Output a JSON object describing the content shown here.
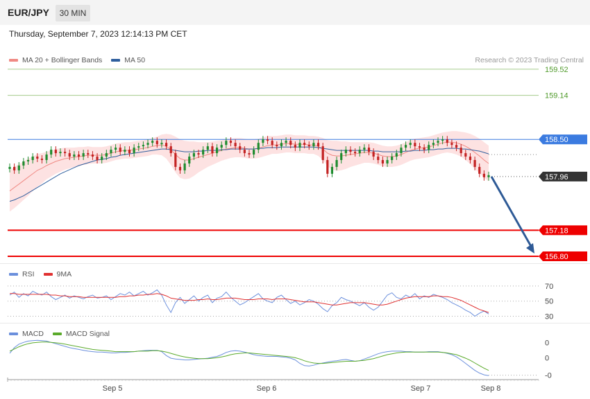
{
  "header": {
    "symbol": "EUR/JPY",
    "timeframe": "30 MIN"
  },
  "datetime": "Thursday, September 7, 2023 12:14:13 PM CET",
  "credit": "Research © 2023 Trading Central",
  "colors": {
    "ma20": "#f08a84",
    "ma50": "#2f5f9e",
    "bollinger": "#fde2e2",
    "resistance_green": "#a5cc8c",
    "pivot_blue": "#3b7be0",
    "support_red": "#ee0000",
    "current_price": "#333333",
    "arrow": "#2e5a96",
    "candle_up": "#1f8c2f",
    "candle_down": "#c32222",
    "rsi": "#6b8fdc",
    "rsi_ma": "#e03030",
    "macd": "#6b8fdc",
    "macd_signal": "#5aaa2a"
  },
  "chart_data": [
    {
      "type": "candlestick",
      "name": "price",
      "legend": [
        {
          "label": "MA 20 + Bollinger Bands"
        },
        {
          "label": "MA 50"
        }
      ],
      "ylim": [
        156.72,
        159.62
      ],
      "x_ticks": [
        "Sep 5",
        "Sep 6",
        "Sep 7",
        "Sep 8"
      ],
      "levels": [
        {
          "value": 159.52,
          "label": "159.52",
          "kind": "resistance"
        },
        {
          "value": 159.14,
          "label": "159.14",
          "kind": "resistance"
        },
        {
          "value": 158.5,
          "label": "158.50",
          "kind": "pivot"
        },
        {
          "value": 157.96,
          "label": "157.96",
          "kind": "current"
        },
        {
          "value": 157.18,
          "label": "157.18",
          "kind": "support"
        },
        {
          "value": 156.8,
          "label": "156.80",
          "kind": "support"
        }
      ],
      "close_series": [
        158.1,
        158.05,
        158.12,
        158.18,
        158.2,
        158.25,
        158.22,
        158.2,
        158.28,
        158.35,
        158.3,
        158.32,
        158.3,
        158.25,
        158.28,
        158.25,
        158.3,
        158.28,
        158.25,
        158.2,
        158.25,
        158.3,
        158.35,
        158.38,
        158.32,
        158.35,
        158.3,
        158.38,
        158.4,
        158.42,
        158.45,
        158.48,
        158.43,
        158.45,
        158.4,
        158.3,
        158.1,
        158.05,
        158.15,
        158.25,
        158.3,
        158.28,
        158.35,
        158.4,
        158.3,
        158.38,
        158.42,
        158.48,
        158.45,
        158.4,
        158.35,
        158.3,
        158.28,
        158.35,
        158.45,
        158.5,
        158.48,
        158.42,
        158.4,
        158.45,
        158.48,
        158.42,
        158.38,
        158.45,
        158.42,
        158.4,
        158.45,
        158.4,
        158.2,
        158.0,
        158.1,
        158.2,
        158.3,
        158.35,
        158.32,
        158.3,
        158.35,
        158.38,
        158.32,
        158.25,
        158.2,
        158.15,
        158.2,
        158.25,
        158.3,
        158.38,
        158.42,
        158.45,
        158.4,
        158.38,
        158.35,
        158.42,
        158.45,
        158.48,
        158.5,
        158.45,
        158.42,
        158.38,
        158.3,
        158.25,
        158.2,
        158.1,
        158.0,
        157.95,
        157.98
      ],
      "ma20_series": [
        157.75,
        157.8,
        157.85,
        157.9,
        157.95,
        158.0,
        158.05,
        158.08,
        158.12,
        158.15,
        158.18,
        158.2,
        158.22,
        158.23,
        158.24,
        158.25,
        158.26,
        158.27,
        158.27,
        158.27,
        158.27,
        158.28,
        158.3,
        158.32,
        158.33,
        158.34,
        158.34,
        158.35,
        158.36,
        158.37,
        158.38,
        158.4,
        158.41,
        158.42,
        158.4,
        158.35,
        158.28,
        158.22,
        158.2,
        158.2,
        158.22,
        158.24,
        158.26,
        158.28,
        158.3,
        158.32,
        158.34,
        158.36,
        158.37,
        158.38,
        158.38,
        158.37,
        158.36,
        158.36,
        158.37,
        158.39,
        158.41,
        158.42,
        158.42,
        158.43,
        158.44,
        158.44,
        158.43,
        158.43,
        158.43,
        158.42,
        158.42,
        158.4,
        158.36,
        158.3,
        158.27,
        158.26,
        158.26,
        158.27,
        158.28,
        158.29,
        158.3,
        158.31,
        158.31,
        158.3,
        158.28,
        158.26,
        158.25,
        158.25,
        158.26,
        158.28,
        158.31,
        158.34,
        158.36,
        158.37,
        158.38,
        158.39,
        158.41,
        158.43,
        158.45,
        158.46,
        158.46,
        158.45,
        158.43,
        158.4,
        158.36,
        158.31,
        158.26,
        158.2,
        158.15
      ],
      "ma50_series": [
        157.6,
        157.62,
        157.65,
        157.68,
        157.72,
        157.76,
        157.8,
        157.84,
        157.88,
        157.92,
        157.96,
        158.0,
        158.03,
        158.06,
        158.09,
        158.12,
        158.14,
        158.16,
        158.18,
        158.2,
        158.21,
        158.22,
        158.24,
        158.25,
        158.27,
        158.28,
        158.29,
        158.3,
        158.31,
        158.32,
        158.33,
        158.34,
        158.35,
        158.36,
        158.36,
        158.35,
        158.34,
        158.33,
        158.32,
        158.32,
        158.32,
        158.33,
        158.33,
        158.34,
        158.34,
        158.34,
        158.35,
        158.35,
        158.36,
        158.36,
        158.36,
        158.36,
        158.36,
        158.36,
        158.37,
        158.37,
        158.38,
        158.38,
        158.38,
        158.39,
        158.39,
        158.39,
        158.39,
        158.39,
        158.39,
        158.39,
        158.39,
        158.38,
        158.37,
        158.36,
        158.35,
        158.34,
        158.34,
        158.34,
        158.34,
        158.34,
        158.34,
        158.34,
        158.34,
        158.33,
        158.33,
        158.32,
        158.32,
        158.32,
        158.32,
        158.32,
        158.33,
        158.33,
        158.34,
        158.34,
        158.34,
        158.35,
        158.35,
        158.36,
        158.36,
        158.37,
        158.37,
        158.37,
        158.36,
        158.36,
        158.35,
        158.34,
        158.33,
        158.31,
        158.29
      ],
      "band_halfwidth": [
        0.3,
        0.3,
        0.29,
        0.28,
        0.27,
        0.25,
        0.24,
        0.22,
        0.2,
        0.19,
        0.18,
        0.17,
        0.16,
        0.15,
        0.14,
        0.14,
        0.13,
        0.13,
        0.12,
        0.12,
        0.12,
        0.12,
        0.12,
        0.12,
        0.12,
        0.12,
        0.12,
        0.12,
        0.12,
        0.12,
        0.12,
        0.12,
        0.13,
        0.15,
        0.18,
        0.22,
        0.26,
        0.28,
        0.28,
        0.27,
        0.25,
        0.22,
        0.2,
        0.18,
        0.17,
        0.16,
        0.15,
        0.15,
        0.14,
        0.14,
        0.14,
        0.14,
        0.14,
        0.14,
        0.14,
        0.14,
        0.14,
        0.13,
        0.13,
        0.13,
        0.13,
        0.13,
        0.13,
        0.13,
        0.13,
        0.13,
        0.13,
        0.14,
        0.16,
        0.19,
        0.21,
        0.22,
        0.21,
        0.2,
        0.18,
        0.17,
        0.16,
        0.15,
        0.15,
        0.15,
        0.15,
        0.15,
        0.15,
        0.15,
        0.15,
        0.15,
        0.15,
        0.15,
        0.15,
        0.15,
        0.15,
        0.15,
        0.15,
        0.15,
        0.15,
        0.15,
        0.16,
        0.17,
        0.18,
        0.2,
        0.22,
        0.24,
        0.25,
        0.26,
        0.26
      ],
      "forecast_target": 156.8
    },
    {
      "type": "line",
      "name": "RSI",
      "legend": [
        {
          "label": "RSI"
        },
        {
          "label": "9MA"
        }
      ],
      "ylim": [
        25,
        80
      ],
      "ref_levels": [
        70,
        50,
        30
      ],
      "rsi_series": [
        58,
        62,
        55,
        60,
        57,
        63,
        60,
        58,
        62,
        56,
        52,
        55,
        58,
        54,
        57,
        55,
        53,
        56,
        58,
        54,
        55,
        57,
        52,
        56,
        60,
        58,
        62,
        57,
        60,
        63,
        58,
        61,
        65,
        58,
        45,
        35,
        48,
        55,
        47,
        52,
        57,
        50,
        55,
        58,
        48,
        54,
        56,
        62,
        55,
        50,
        45,
        48,
        52,
        56,
        60,
        53,
        50,
        48,
        55,
        58,
        52,
        47,
        50,
        45,
        48,
        52,
        50,
        46,
        40,
        36,
        44,
        48,
        55,
        52,
        50,
        47,
        44,
        48,
        42,
        38,
        42,
        50,
        58,
        61,
        55,
        53,
        58,
        55,
        60,
        53,
        57,
        55,
        59,
        57,
        55,
        52,
        48,
        45,
        42,
        38,
        35,
        30,
        34,
        37,
        33
      ],
      "rsi_ma_series": [
        60,
        60,
        59,
        59,
        59,
        59,
        59,
        59,
        59,
        58,
        58,
        57,
        57,
        56,
        56,
        56,
        55,
        55,
        55,
        55,
        55,
        55,
        55,
        55,
        56,
        56,
        57,
        57,
        58,
        58,
        59,
        59,
        60,
        59,
        57,
        54,
        53,
        52,
        51,
        51,
        51,
        52,
        52,
        53,
        52,
        52,
        53,
        54,
        54,
        54,
        53,
        52,
        52,
        52,
        53,
        53,
        53,
        52,
        53,
        53,
        53,
        52,
        51,
        50,
        49,
        49,
        49,
        48,
        47,
        46,
        45,
        45,
        46,
        47,
        48,
        48,
        48,
        48,
        47,
        46,
        45,
        45,
        46,
        48,
        50,
        52,
        54,
        55,
        56,
        56,
        56,
        56,
        57,
        57,
        56,
        56,
        55,
        53,
        51,
        48,
        45,
        42,
        39,
        37,
        35
      ]
    },
    {
      "type": "line",
      "name": "MACD",
      "legend": [
        {
          "label": "MACD"
        },
        {
          "label": "MACD Signal"
        }
      ],
      "ylim": [
        -0.55,
        0.4
      ],
      "y_ticks": [
        {
          "value": 0.3,
          "label": "0"
        },
        {
          "value": -0.05,
          "label": "0"
        },
        {
          "value": -0.45,
          "label": "-0"
        }
      ],
      "macd_series": [
        0.05,
        0.18,
        0.26,
        0.3,
        0.33,
        0.34,
        0.35,
        0.34,
        0.33,
        0.3,
        0.27,
        0.24,
        0.21,
        0.18,
        0.16,
        0.14,
        0.12,
        0.1,
        0.09,
        0.08,
        0.08,
        0.07,
        0.06,
        0.06,
        0.07,
        0.07,
        0.08,
        0.09,
        0.1,
        0.11,
        0.12,
        0.12,
        0.12,
        0.09,
        0.0,
        -0.06,
        -0.08,
        -0.09,
        -0.1,
        -0.1,
        -0.09,
        -0.08,
        -0.07,
        -0.06,
        -0.04,
        -0.02,
        0.02,
        0.07,
        0.1,
        0.11,
        0.1,
        0.08,
        0.05,
        0.02,
        0.0,
        -0.01,
        -0.02,
        -0.02,
        -0.02,
        -0.03,
        -0.04,
        -0.06,
        -0.1,
        -0.18,
        -0.23,
        -0.24,
        -0.22,
        -0.19,
        -0.17,
        -0.15,
        -0.13,
        -0.12,
        -0.1,
        -0.09,
        -0.11,
        -0.13,
        -0.12,
        -0.08,
        -0.04,
        0.0,
        0.04,
        0.07,
        0.09,
        0.1,
        0.1,
        0.1,
        0.09,
        0.09,
        0.08,
        0.08,
        0.08,
        0.09,
        0.09,
        0.09,
        0.07,
        0.05,
        0.02,
        -0.03,
        -0.1,
        -0.18,
        -0.26,
        -0.34,
        -0.4,
        -0.44,
        -0.46
      ],
      "signal_series": [
        0.1,
        0.15,
        0.2,
        0.24,
        0.27,
        0.29,
        0.3,
        0.31,
        0.31,
        0.3,
        0.29,
        0.28,
        0.26,
        0.24,
        0.22,
        0.2,
        0.18,
        0.16,
        0.14,
        0.13,
        0.12,
        0.11,
        0.1,
        0.09,
        0.09,
        0.09,
        0.09,
        0.09,
        0.1,
        0.1,
        0.1,
        0.11,
        0.11,
        0.1,
        0.08,
        0.05,
        0.02,
        -0.01,
        -0.03,
        -0.05,
        -0.06,
        -0.07,
        -0.07,
        -0.07,
        -0.06,
        -0.05,
        -0.03,
        -0.01,
        0.02,
        0.04,
        0.05,
        0.06,
        0.06,
        0.05,
        0.04,
        0.03,
        0.02,
        0.01,
        0.0,
        -0.01,
        -0.02,
        -0.03,
        -0.05,
        -0.08,
        -0.12,
        -0.15,
        -0.17,
        -0.18,
        -0.18,
        -0.17,
        -0.16,
        -0.15,
        -0.14,
        -0.13,
        -0.13,
        -0.13,
        -0.12,
        -0.11,
        -0.09,
        -0.07,
        -0.04,
        -0.01,
        0.02,
        0.04,
        0.06,
        0.07,
        0.08,
        0.08,
        0.08,
        0.08,
        0.08,
        0.08,
        0.08,
        0.08,
        0.07,
        0.06,
        0.04,
        0.02,
        -0.02,
        -0.06,
        -0.11,
        -0.17,
        -0.23,
        -0.29,
        -0.34
      ]
    }
  ]
}
